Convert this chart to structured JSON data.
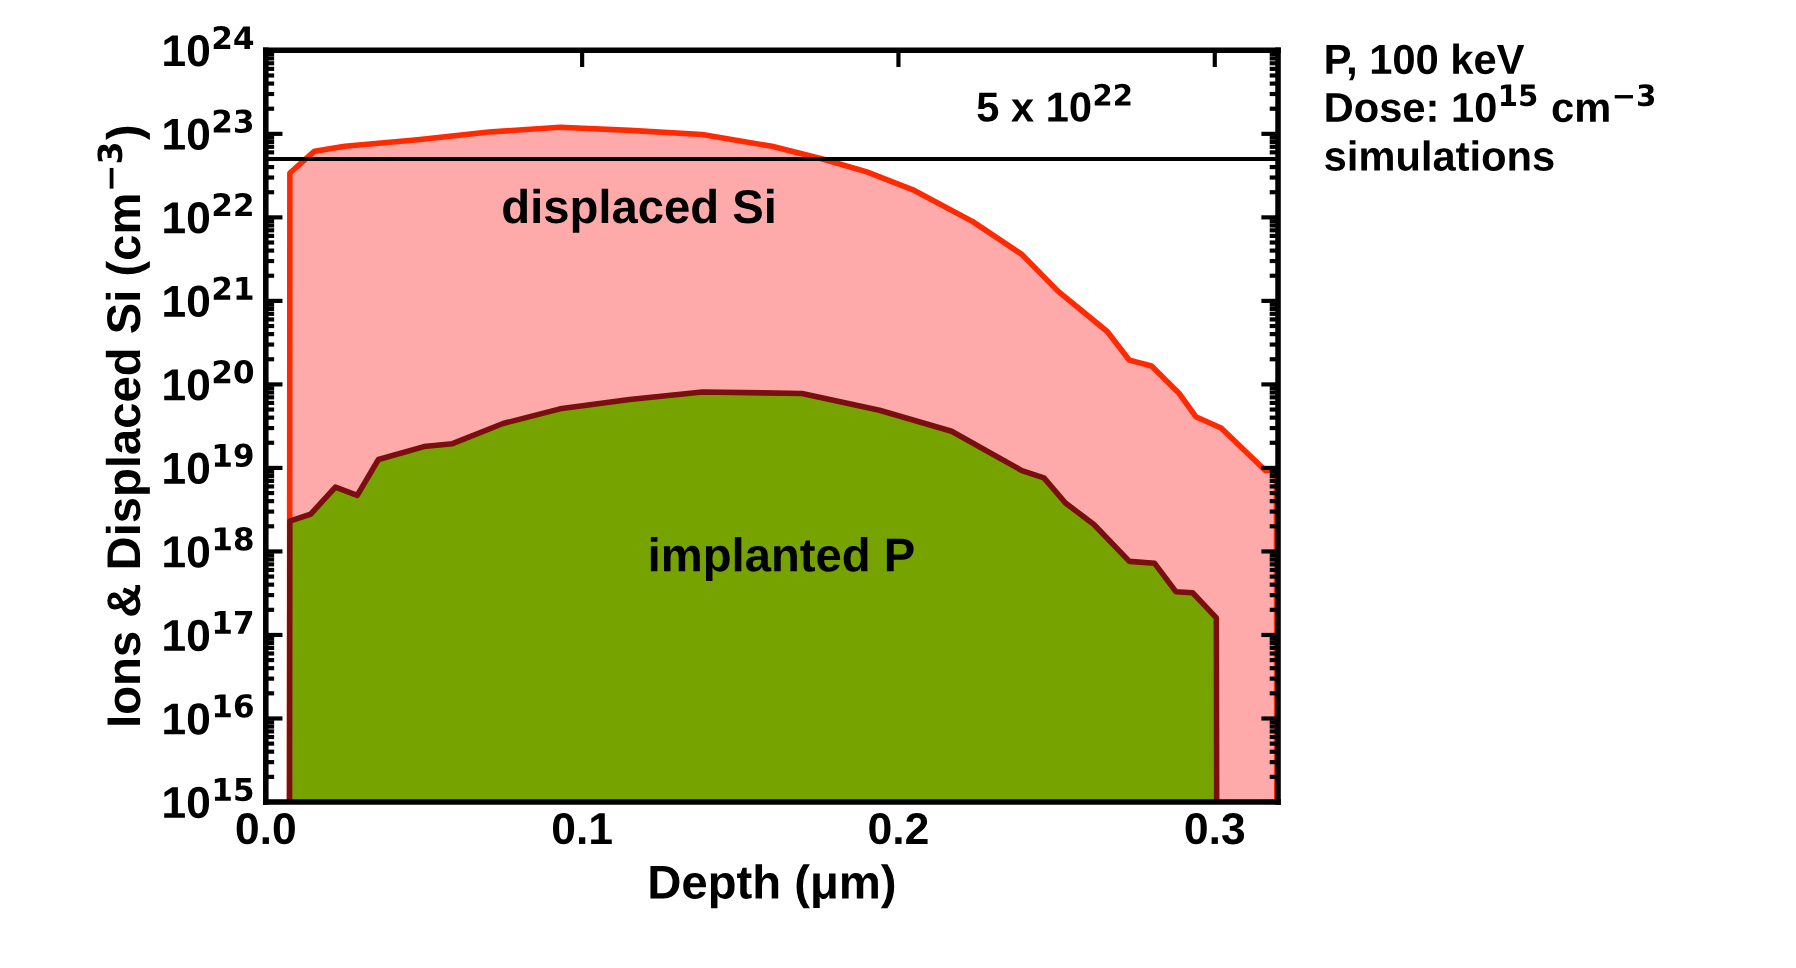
{
  "chart_data": {
    "type": "area",
    "xlabel": "Depth (μm)",
    "ylabel": "Ions & Displaced Si (cm$^{−3}$)",
    "log": "y",
    "xlim": [
      0,
      0.32
    ],
    "xticks": [
      {
        "value": 0,
        "label": "0.0"
      },
      0.1,
      0.2,
      0.3
    ],
    "ylim": [
      1000000000000000.0,
      1e+24
    ],
    "yticks": [
      {
        "value": 1000000000000000.0,
        "label": "10$^{15}$"
      },
      {
        "value": 1e+16,
        "label": "10$^{16}$"
      },
      {
        "value": 1e+17,
        "label": "10$^{17}$"
      },
      {
        "value": 1e+18,
        "label": "10$^{18}$"
      },
      {
        "value": 1e+19,
        "label": "10$^{19}$"
      },
      {
        "value": 1e+20,
        "label": "10$^{20}$"
      },
      {
        "value": 1e+21,
        "label": "10$^{21}$"
      },
      {
        "value": 1e+22,
        "label": "10$^{22}$"
      },
      {
        "value": 1e+23,
        "label": "10$^{23}$"
      },
      {
        "value": 1e+24,
        "label": "10$^{24}$"
      }
    ],
    "grid": false,
    "legend": false,
    "series": [
      {
        "name": "displaced Si",
        "color": "#ffaaaa",
        "x": [
          0.0075,
          0.0076,
          0.0154,
          0.025,
          0.048,
          0.0705,
          0.093,
          0.115,
          0.138,
          0.16,
          0.176,
          0.19,
          0.205,
          0.2235,
          0.239,
          0.2505,
          0.266,
          0.273,
          0.28,
          0.2886,
          0.294,
          0.302,
          0.316,
          0.3195,
          0.3196
        ],
        "values": [
          1000000000000000.0,
          3.4e+22,
          6.2e+22,
          7.1e+22,
          8.5e+22,
          1.05e+23,
          1.2e+23,
          1.1e+23,
          9.8e+22,
          7.1e+22,
          5e+22,
          3.5e+22,
          2.1e+22,
          8.9e+21,
          3.6e+21,
          1.3e+21,
          4.3e+20,
          1.95e+20,
          1.66e+20,
          7.9e+19,
          4.1e+19,
          3e+19,
          9.3e+18,
          9.3e+18,
          1000000000000000.0
        ]
      },
      {
        "name": "implanted P",
        "color": "#76a300",
        "x": [
          0.0075,
          0.0076,
          0.0142,
          0.022,
          0.0289,
          0.0356,
          0.05,
          0.059,
          0.075,
          0.093,
          0.115,
          0.138,
          0.1695,
          0.194,
          0.2168,
          0.239,
          0.246,
          0.2528,
          0.2618,
          0.273,
          0.281,
          0.2877,
          0.293,
          0.3005,
          0.3006
        ],
        "values": [
          1000000000000000.0,
          2.3e+18,
          2.8e+18,
          5.9e+18,
          4.7e+18,
          1.26e+19,
          1.8e+19,
          1.95e+19,
          3.4e+19,
          5.1e+19,
          6.6e+19,
          8.1e+19,
          7.8e+19,
          4.9e+19,
          2.75e+19,
          9.3e+18,
          7.6e+18,
          3.8e+18,
          2.1e+18,
          7.6e+17,
          7.2e+17,
          3.3e+17,
          3.2e+17,
          1.6e+17,
          1000000000000000.0
        ]
      }
    ],
    "ref_lines": [
      {
        "axis": "y",
        "value": 5e+22,
        "label": "5 x 10$^{22}$",
        "color": "#000000",
        "line_style": "solid"
      }
    ],
    "annotations": [
      "P, 100 keV",
      "Dose: 10$^{15}$ cm$^{−3}$",
      "simulations"
    ]
  }
}
